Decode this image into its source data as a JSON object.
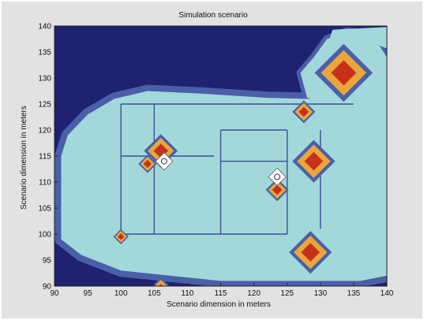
{
  "chart_data": {
    "type": "heatmap",
    "title": "Simulation scenario",
    "xlabel": "Scenario dimension in meters",
    "ylabel": "Scenario dimension in meters",
    "xlim": [
      90,
      140
    ],
    "ylim": [
      90,
      140
    ],
    "x_ticks": [
      90,
      95,
      100,
      105,
      110,
      115,
      120,
      125,
      130,
      135,
      140
    ],
    "y_ticks": [
      90,
      95,
      100,
      105,
      110,
      115,
      120,
      125,
      130,
      135,
      140
    ],
    "grid": false,
    "colors": {
      "level_0": "#1e2270",
      "level_1": "#4a5fa8",
      "level_2": "#a3d8da",
      "level_3": "#e8a63c",
      "level_4": "#c8301c",
      "obstacle_line": "#3c4f92",
      "marker_fill": "#ffffff",
      "frame": "#e2e2e2"
    },
    "contour_regions": {
      "open_area": [
        [
          91,
          115
        ],
        [
          92,
          119
        ],
        [
          95,
          123
        ],
        [
          99,
          126
        ],
        [
          104,
          127.5
        ],
        [
          112,
          127
        ],
        [
          122,
          126.2
        ],
        [
          128,
          126
        ],
        [
          132,
          126.5
        ],
        [
          135,
          128
        ],
        [
          139,
          133
        ],
        [
          140,
          134
        ],
        [
          140,
          92
        ],
        [
          136,
          91
        ],
        [
          115,
          91
        ],
        [
          100,
          93
        ],
        [
          94,
          96
        ],
        [
          91,
          99
        ]
      ],
      "band_lobe_topright": [
        [
          127,
          131
        ],
        [
          129,
          134
        ],
        [
          131,
          137.5
        ],
        [
          134,
          139
        ],
        [
          137,
          138.5
        ],
        [
          139,
          136
        ],
        [
          140,
          134
        ],
        [
          139,
          130
        ],
        [
          136,
          127
        ],
        [
          132,
          125.5
        ],
        [
          128,
          126.2
        ]
      ],
      "band_lobe_top": [
        [
          131,
          135
        ],
        [
          133,
          137
        ],
        [
          136,
          138
        ],
        [
          140,
          136
        ],
        [
          140,
          139.5
        ],
        [
          132,
          139
        ]
      ]
    },
    "walls": [
      {
        "x": [
          100,
          135
        ],
        "y": [
          125,
          125
        ]
      },
      {
        "x": [
          100,
          100
        ],
        "y": [
          125,
          100
        ]
      },
      {
        "x": [
          100,
          125
        ],
        "y": [
          100,
          100
        ]
      },
      {
        "x": [
          100,
          114
        ],
        "y": [
          115,
          115
        ]
      },
      {
        "x": [
          105,
          105
        ],
        "y": [
          125,
          100
        ]
      },
      {
        "x": [
          115,
          115
        ],
        "y": [
          120,
          100
        ]
      },
      {
        "x": [
          115,
          125
        ],
        "y": [
          120,
          120
        ]
      },
      {
        "x": [
          115,
          125
        ],
        "y": [
          114,
          114
        ]
      },
      {
        "x": [
          125,
          125
        ],
        "y": [
          120,
          100
        ]
      },
      {
        "x": [
          130,
          130
        ],
        "y": [
          120,
          101
        ]
      }
    ],
    "hotspots": [
      {
        "x": 133.5,
        "y": 131,
        "size": 3.8
      },
      {
        "x": 129,
        "y": 114,
        "size": 2.8
      },
      {
        "x": 128.5,
        "y": 96.5,
        "size": 2.8
      },
      {
        "x": 106,
        "y": 116,
        "size": 2.2
      },
      {
        "x": 123.5,
        "y": 108.5,
        "size": 1.5
      },
      {
        "x": 106,
        "y": 89.5,
        "size": 1.5
      },
      {
        "x": 127.5,
        "y": 123.5,
        "size": 1.5
      },
      {
        "x": 104,
        "y": 113.5,
        "size": 1.2
      },
      {
        "x": 100,
        "y": 99.5,
        "size": 1.0
      }
    ],
    "agents": [
      {
        "x": 106.5,
        "y": 114
      },
      {
        "x": 123.5,
        "y": 111
      }
    ]
  }
}
